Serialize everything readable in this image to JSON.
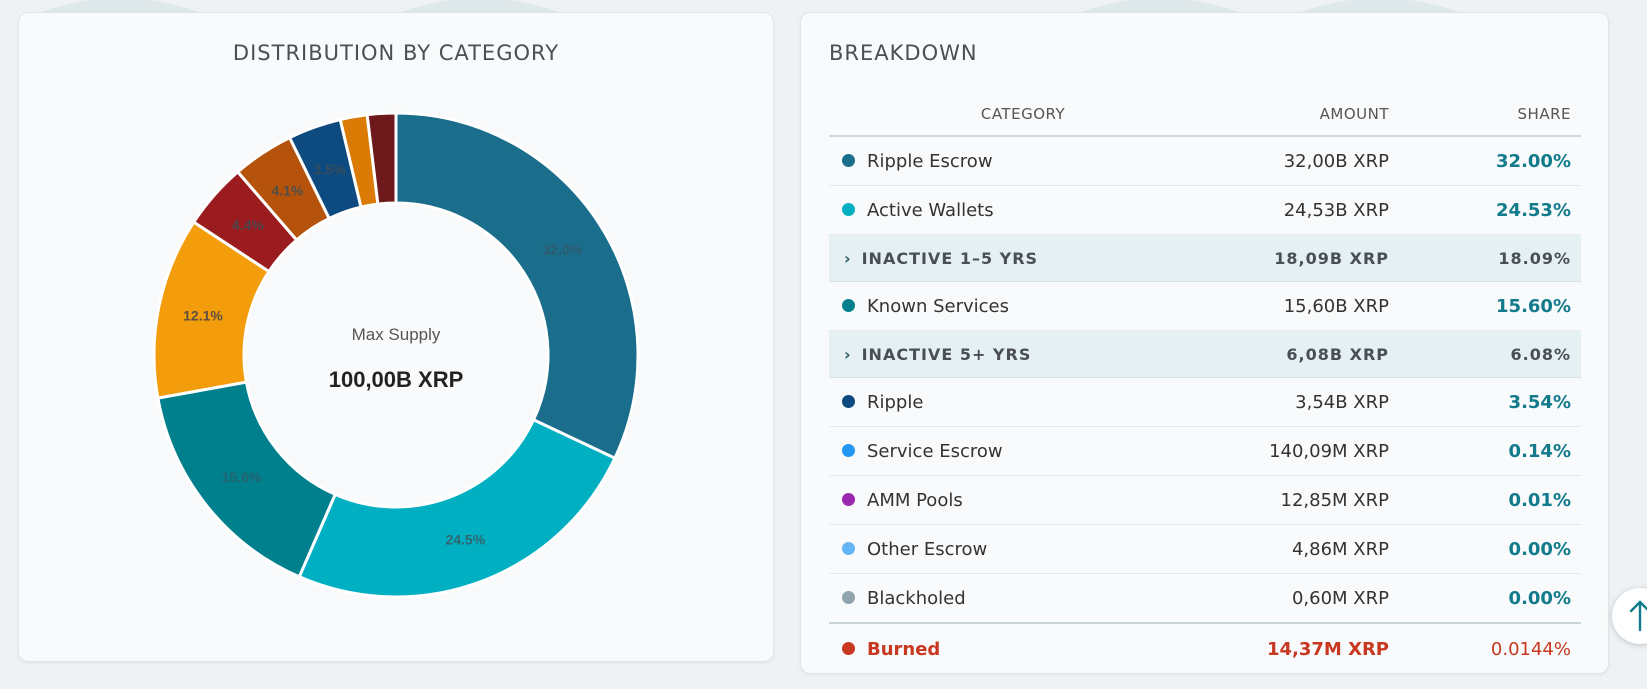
{
  "chart_data": {
    "type": "pie",
    "title": "DISTRIBUTION BY CATEGORY",
    "center_label": "Max Supply",
    "center_value": "100,00B XRP",
    "slices": [
      {
        "label": "32.0%",
        "value": 32.0,
        "color": "#1a6e8c"
      },
      {
        "label": "24.5%",
        "value": 24.53,
        "color": "#00b0c2"
      },
      {
        "label": "15.6%",
        "value": 15.6,
        "color": "#00808d"
      },
      {
        "label": "12.1%",
        "value": 12.1,
        "color": "#f39c0c"
      },
      {
        "label": "4.4%",
        "value": 4.4,
        "color": "#9b1c1f"
      },
      {
        "label": "4.1%",
        "value": 4.1,
        "color": "#b5530c"
      },
      {
        "label": "3.5%",
        "value": 3.54,
        "color": "#0d4a80"
      },
      {
        "label": "",
        "value": 1.8,
        "color": "#db7b06"
      },
      {
        "label": "",
        "value": 1.9,
        "color": "#6e1a1c"
      }
    ]
  },
  "breakdown": {
    "title": "BREAKDOWN",
    "headers": {
      "category": "CATEGORY",
      "amount": "AMOUNT",
      "share": "SHARE"
    },
    "rows": [
      {
        "kind": "item",
        "category": "Ripple Escrow",
        "amount": "32,00B XRP",
        "share": "32.00%",
        "color": "#1a6e8c"
      },
      {
        "kind": "item",
        "category": "Active Wallets",
        "amount": "24,53B XRP",
        "share": "24.53%",
        "color": "#00b0c2"
      },
      {
        "kind": "group",
        "category": "INACTIVE 1–5 YRS",
        "amount": "18,09B XRP",
        "share": "18.09%"
      },
      {
        "kind": "item",
        "category": "Known Services",
        "amount": "15,60B XRP",
        "share": "15.60%",
        "color": "#00808d"
      },
      {
        "kind": "group",
        "category": "INACTIVE 5+ YRS",
        "amount": "6,08B XRP",
        "share": "6.08%"
      },
      {
        "kind": "item",
        "category": "Ripple",
        "amount": "3,54B XRP",
        "share": "3.54%",
        "color": "#0d4a80"
      },
      {
        "kind": "item",
        "category": "Service Escrow",
        "amount": "140,09M XRP",
        "share": "0.14%",
        "color": "#2196f3"
      },
      {
        "kind": "item",
        "category": "AMM Pools",
        "amount": "12,85M XRP",
        "share": "0.01%",
        "color": "#9c27b0"
      },
      {
        "kind": "item",
        "category": "Other Escrow",
        "amount": "4,86M XRP",
        "share": "0.00%",
        "color": "#64b5f6"
      },
      {
        "kind": "item",
        "category": "Blackholed",
        "amount": "0,60M XRP",
        "share": "0.00%",
        "color": "#90a4ae"
      },
      {
        "kind": "burned",
        "category": "Burned",
        "amount": "14,37M XRP",
        "share": "0.0144%",
        "color": "#c8371f"
      }
    ]
  },
  "scroll_top_icon": "arrow-up-icon"
}
